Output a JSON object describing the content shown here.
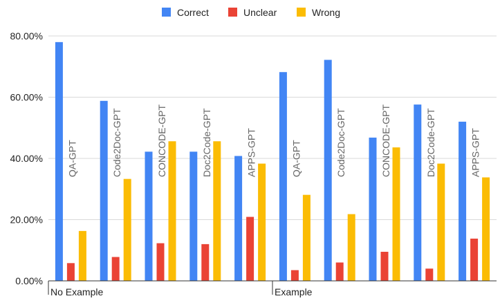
{
  "chart_data": {
    "type": "bar",
    "title": "",
    "xlabel": "",
    "ylabel": "",
    "ylim": [
      0,
      80
    ],
    "y_ticks": [
      "0.00%",
      "20.00%",
      "40.00%",
      "60.00%",
      "80.00%"
    ],
    "y_tick_values": [
      0,
      20,
      40,
      60,
      80
    ],
    "legend_position": "top-center",
    "grid": true,
    "groups": [
      {
        "label": "No Example",
        "categories": [
          "QA-GPT",
          "Code2Doc-GPT",
          "CONCODE-GPT",
          "Doc2Code-GPT",
          "APPS-GPT"
        ]
      },
      {
        "label": "Example",
        "categories": [
          "QA-GPT",
          "Code2Doc-GPT",
          "CONCODE-GPT",
          "Doc2Code-GPT",
          "APPS-GPT"
        ]
      }
    ],
    "categories": [
      "QA-GPT",
      "Code2Doc-GPT",
      "CONCODE-GPT",
      "Doc2Code-GPT",
      "APPS-GPT",
      "QA-GPT",
      "Code2Doc-GPT",
      "CONCODE-GPT",
      "Doc2Code-GPT",
      "APPS-GPT"
    ],
    "series": [
      {
        "name": "Correct",
        "color": "#4285F4",
        "values": [
          78,
          58.8,
          42.2,
          42.2,
          40.8,
          68.2,
          72.2,
          46.8,
          57.6,
          52
        ]
      },
      {
        "name": "Unclear",
        "color": "#EA4335",
        "values": [
          5.8,
          7.8,
          12.3,
          12,
          20.9,
          3.5,
          6,
          9.5,
          4,
          13.8
        ]
      },
      {
        "name": "Wrong",
        "color": "#FBBC04",
        "values": [
          16.3,
          33.3,
          45.6,
          45.6,
          38.3,
          28.1,
          21.8,
          43.6,
          38.3,
          33.8
        ]
      }
    ]
  }
}
